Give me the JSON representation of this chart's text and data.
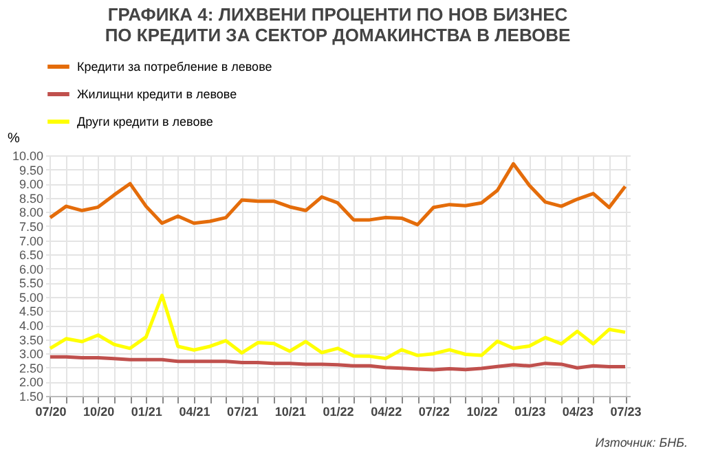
{
  "chart_data": {
    "type": "line",
    "title": "ГРАФИКА 4: ЛИХВЕНИ ПРОЦЕНТИ ПО НОВ БИЗНЕС\nПО КРЕДИТИ ЗА СЕКТОР ДОМАКИНСТВА В ЛЕВОВЕ",
    "ylabel": "%",
    "categories": [
      "07/20",
      null,
      null,
      "10/20",
      null,
      null,
      "01/21",
      null,
      null,
      "04/21",
      null,
      null,
      "07/21",
      null,
      null,
      "10/21",
      null,
      null,
      "01/22",
      null,
      null,
      "04/22",
      null,
      null,
      "07/22",
      null,
      null,
      "10/22",
      null,
      null,
      "01/23",
      null,
      null,
      "04/23",
      null,
      null,
      "07/23"
    ],
    "series": [
      {
        "name": "Кредити за потребление в левове",
        "color": "#e46c0a",
        "values": [
          7.8,
          8.2,
          8.05,
          8.17,
          8.6,
          9.0,
          8.2,
          7.6,
          7.85,
          7.6,
          7.67,
          7.8,
          8.42,
          8.38,
          8.38,
          8.18,
          8.05,
          8.53,
          8.32,
          7.72,
          7.72,
          7.8,
          7.78,
          7.55,
          8.16,
          8.26,
          8.22,
          8.32,
          8.76,
          9.7,
          8.94,
          8.35,
          8.2,
          8.45,
          8.65,
          8.16,
          8.9
        ]
      },
      {
        "name": "Жилищни кредити в левове",
        "color": "#c0504d",
        "values": [
          2.88,
          2.88,
          2.85,
          2.85,
          2.82,
          2.78,
          2.78,
          2.78,
          2.72,
          2.72,
          2.72,
          2.72,
          2.68,
          2.68,
          2.65,
          2.65,
          2.62,
          2.62,
          2.6,
          2.56,
          2.56,
          2.5,
          2.48,
          2.45,
          2.42,
          2.46,
          2.43,
          2.47,
          2.54,
          2.6,
          2.56,
          2.65,
          2.62,
          2.49,
          2.56,
          2.53,
          2.53
        ]
      },
      {
        "name": "Други кредити в левове",
        "color": "#ffff00",
        "values": [
          3.18,
          3.52,
          3.42,
          3.65,
          3.32,
          3.18,
          3.58,
          5.05,
          3.25,
          3.12,
          3.25,
          3.45,
          3.02,
          3.38,
          3.35,
          3.08,
          3.42,
          3.03,
          3.18,
          2.91,
          2.9,
          2.82,
          3.13,
          2.93,
          2.99,
          3.13,
          2.97,
          2.93,
          3.43,
          3.18,
          3.26,
          3.56,
          3.34,
          3.78,
          3.34,
          3.85,
          3.75
        ]
      }
    ],
    "ylim": [
      1.5,
      10
    ],
    "yticks": [
      {
        "value": 1.5,
        "label": "1.50"
      },
      {
        "value": 2,
        "label": "2.00"
      },
      {
        "value": 2.5,
        "label": "2.50"
      },
      {
        "value": 3,
        "label": "3.00"
      },
      {
        "value": 3.5,
        "label": "3.50"
      },
      {
        "value": 4,
        "label": "4.00"
      },
      {
        "value": 4.5,
        "label": "4.50"
      },
      {
        "value": 5,
        "label": "5.00"
      },
      {
        "value": 5.5,
        "label": "5.50"
      },
      {
        "value": 6,
        "label": "6.00"
      },
      {
        "value": 6.5,
        "label": "6.50"
      },
      {
        "value": 7,
        "label": "7.00"
      },
      {
        "value": 7.5,
        "label": "7.50"
      },
      {
        "value": 8,
        "label": "8.00"
      },
      {
        "value": 8.5,
        "label": "8.50"
      },
      {
        "value": 9,
        "label": "9.00"
      },
      {
        "value": 9.5,
        "label": "9.50"
      },
      {
        "value": 10,
        "label": "10.00"
      }
    ],
    "grid": true,
    "legend": "top",
    "marker": "none",
    "line_style": "solid",
    "annotations": [
      "Източник: БНБ."
    ]
  }
}
